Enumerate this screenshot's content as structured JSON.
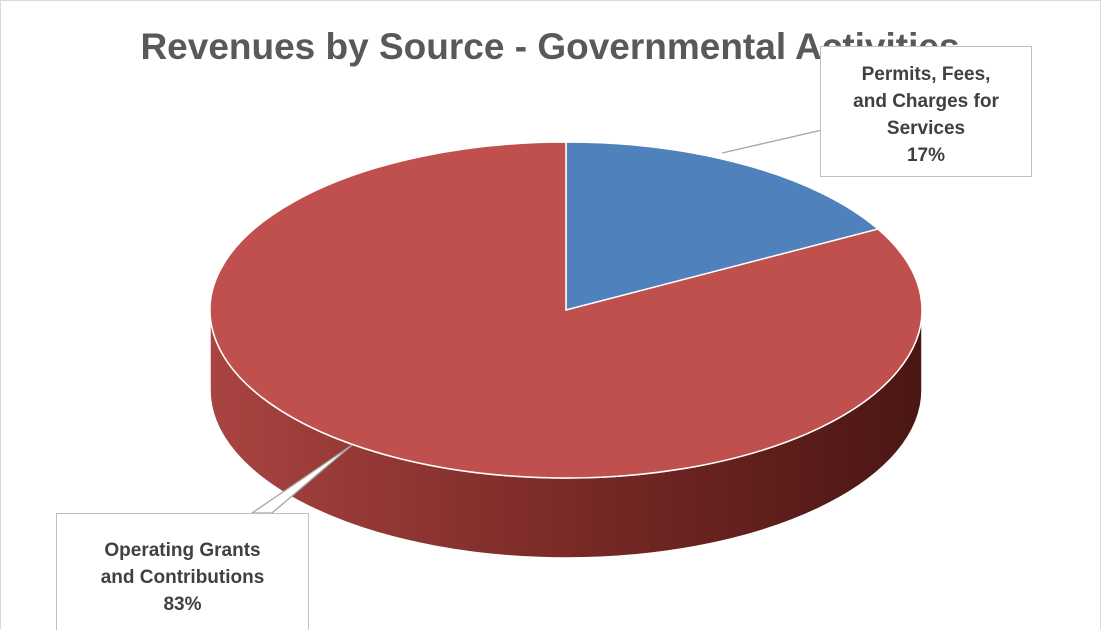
{
  "chart_data": {
    "type": "pie",
    "title": "Revenues by Source - Governmental Activities",
    "slices": [
      {
        "name": "Permits, Fees, and Charges for Services",
        "label_lines": [
          "Permits, Fees,",
          "and Charges for",
          "Services"
        ],
        "value": 17,
        "label": "17%",
        "color": "#4f81bd"
      },
      {
        "name": "Operating Grants and Contributions",
        "label_lines": [
          "Operating Grants",
          "and Contributions"
        ],
        "value": 83,
        "label": "83%",
        "color": "#c0504d"
      }
    ],
    "style": "3d"
  }
}
